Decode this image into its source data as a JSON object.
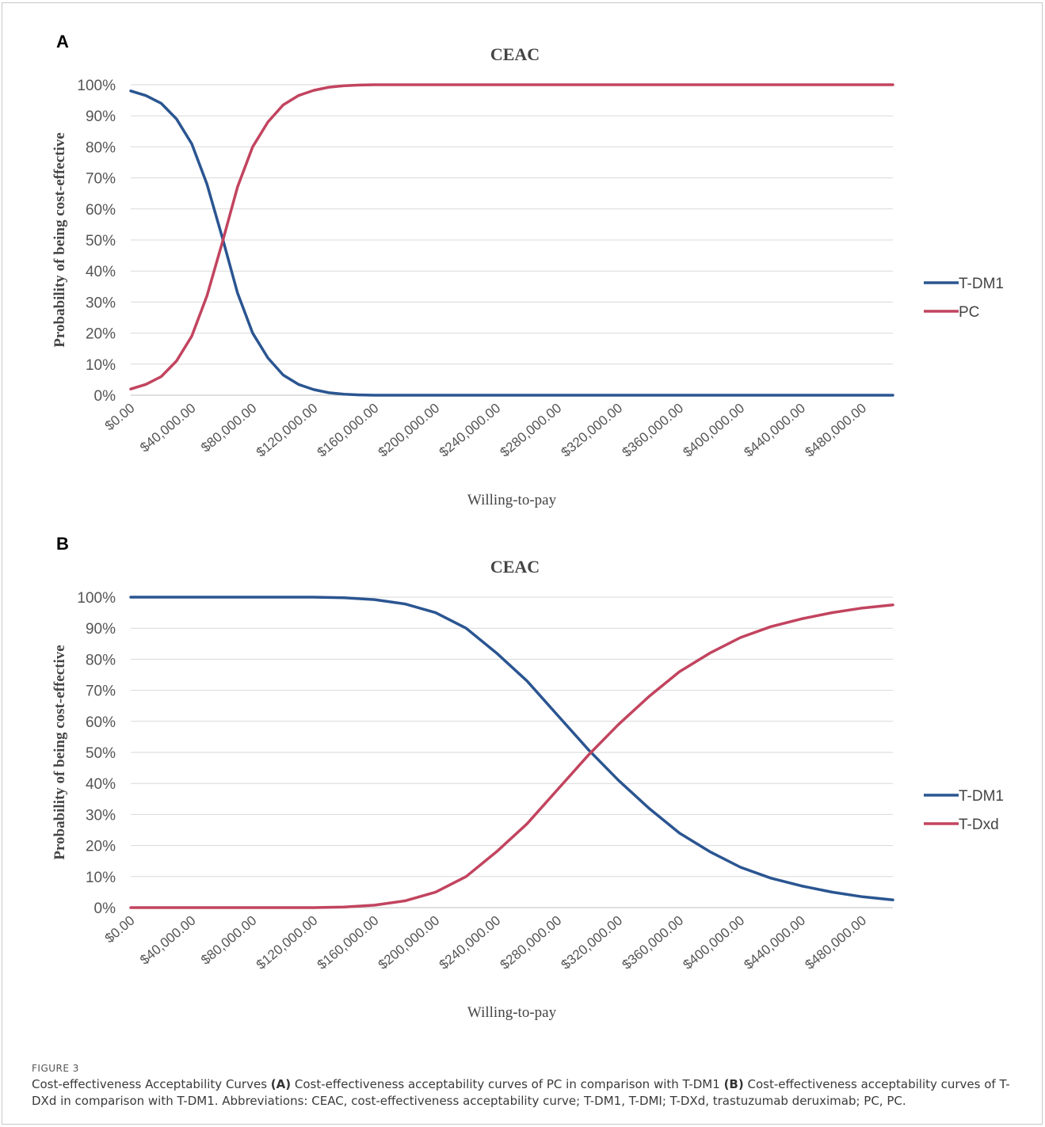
{
  "colors": {
    "tdm1": "#2a5591",
    "second": "#c2445f",
    "grid": "#d9d9d9",
    "axis": "#bfbfbf"
  },
  "panels": [
    {
      "letter": "A"
    },
    {
      "letter": "B"
    }
  ],
  "chart_data": [
    {
      "type": "line",
      "title": "CEAC",
      "xlabel": "Willing-to-pay",
      "ylabel": "Probability of being cost-effective",
      "xlim": [
        0,
        500000
      ],
      "ylim": [
        0,
        100
      ],
      "y_ticks": [
        "0%",
        "10%",
        "20%",
        "30%",
        "40%",
        "50%",
        "60%",
        "70%",
        "80%",
        "90%",
        "100%"
      ],
      "x_ticks": [
        "$0.00",
        "$40,000.00",
        "$80,000.00",
        "$120,000.00",
        "$160,000.00",
        "$200,000.00",
        "$240,000.00",
        "$280,000.00",
        "$320,000.00",
        "$360,000.00",
        "$400,000.00",
        "$440,000.00",
        "$480,000.00"
      ],
      "grid": true,
      "legend_position": "right",
      "x": [
        0,
        10000,
        20000,
        30000,
        40000,
        50000,
        60000,
        70000,
        80000,
        90000,
        100000,
        110000,
        120000,
        130000,
        140000,
        150000,
        160000,
        180000,
        200000,
        250000,
        300000,
        350000,
        400000,
        450000,
        500000
      ],
      "series": [
        {
          "name": "T-DM1",
          "values": [
            98,
            96.5,
            94,
            89,
            81,
            68,
            51,
            33,
            20,
            12,
            6.5,
            3.5,
            1.8,
            0.8,
            0.3,
            0.1,
            0,
            0,
            0,
            0,
            0,
            0,
            0,
            0,
            0
          ]
        },
        {
          "name": "PC",
          "values": [
            2,
            3.5,
            6,
            11,
            19,
            32,
            49,
            67,
            80,
            88,
            93.5,
            96.5,
            98.2,
            99.2,
            99.7,
            99.9,
            100,
            100,
            100,
            100,
            100,
            100,
            100,
            100,
            100
          ]
        }
      ]
    },
    {
      "type": "line",
      "title": "CEAC",
      "xlabel": "Willing-to-pay",
      "ylabel": "Probability of being cost-effective",
      "xlim": [
        0,
        500000
      ],
      "ylim": [
        0,
        100
      ],
      "y_ticks": [
        "0%",
        "10%",
        "20%",
        "30%",
        "40%",
        "50%",
        "60%",
        "70%",
        "80%",
        "90%",
        "100%"
      ],
      "x_ticks": [
        "$0.00",
        "$40,000.00",
        "$80,000.00",
        "$120,000.00",
        "$160,000.00",
        "$200,000.00",
        "$240,000.00",
        "$280,000.00",
        "$320,000.00",
        "$360,000.00",
        "$400,000.00",
        "$440,000.00",
        "$480,000.00"
      ],
      "grid": true,
      "legend_position": "right",
      "x": [
        0,
        40000,
        80000,
        120000,
        140000,
        160000,
        180000,
        200000,
        220000,
        240000,
        260000,
        280000,
        300000,
        310000,
        320000,
        340000,
        360000,
        380000,
        400000,
        420000,
        440000,
        460000,
        480000,
        500000
      ],
      "series": [
        {
          "name": "T-DM1",
          "values": [
            100,
            100,
            100,
            100,
            99.8,
            99.2,
            97.8,
            95,
            90,
            82,
            73,
            62,
            51,
            46,
            41,
            32,
            24,
            18,
            13,
            9.5,
            7,
            5,
            3.5,
            2.5
          ]
        },
        {
          "name": "T-Dxd",
          "values": [
            0,
            0,
            0,
            0,
            0.2,
            0.8,
            2.2,
            5,
            10,
            18,
            27,
            38,
            49,
            54,
            59,
            68,
            76,
            82,
            87,
            90.5,
            93,
            95,
            96.5,
            97.5
          ]
        }
      ]
    }
  ],
  "caption": {
    "label": "FIGURE 3",
    "intro": "Cost-effectiveness Acceptability Curves ",
    "a_tag": "(A)",
    "a_text": " Cost-effectiveness acceptability curves of PC in comparison with T-DM1 ",
    "b_tag": "(B)",
    "b_text": " Cost-effectiveness acceptability curves of T-DXd in comparison with T-DM1. Abbreviations: CEAC, cost-effectiveness acceptability curve; T-DM1, T-DMI; T-DXd, trastuzumab deruximab; PC, PC."
  }
}
